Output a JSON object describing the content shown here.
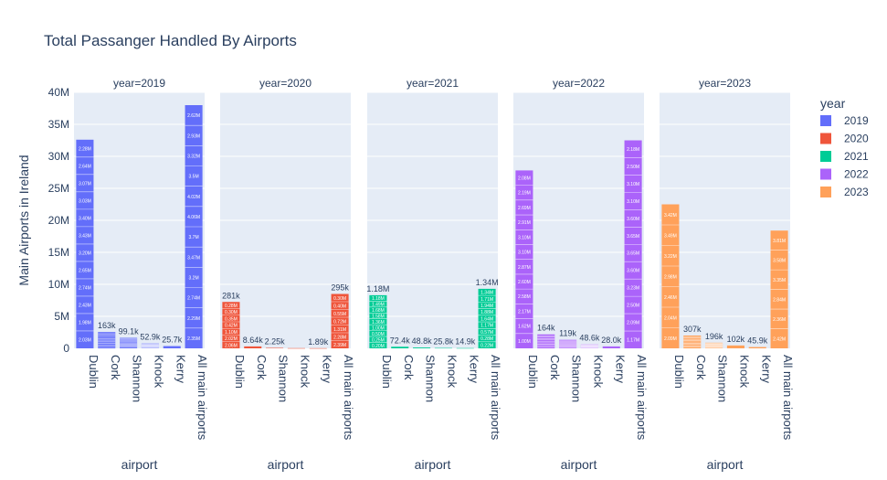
{
  "chart_data": {
    "type": "bar",
    "title": "Total Passanger Handled By Airports",
    "xlabel": "airport",
    "ylabel": "Main Airports in Ireland",
    "legend_title": "year",
    "legend_position": "right",
    "grid": true,
    "ylim": [
      0,
      40000000
    ],
    "yticks": [
      0,
      5000000,
      10000000,
      15000000,
      20000000,
      25000000,
      30000000,
      35000000,
      40000000
    ],
    "ytick_labels": [
      "0",
      "5M",
      "10M",
      "15M",
      "20M",
      "25M",
      "30M",
      "35M",
      "40M"
    ],
    "categories": [
      "Dublin",
      "Cork",
      "Shannon",
      "Knock",
      "Kerry",
      "All main airports"
    ],
    "facets": [
      {
        "label": "year=2019",
        "name": "2019",
        "color": "#636efa",
        "totals": [
          32600000,
          2550000,
          1640000,
          780000,
          350000,
          38000000
        ],
        "top_labels": [
          "",
          "163k",
          "99.1k",
          "52.9k",
          "25.7k",
          ""
        ],
        "segments": {
          "Dublin": [
            "2.03M",
            "1.98M",
            "2.43M",
            "2.74M",
            "2.65M",
            "3.20M",
            "3.43M",
            "3.40M",
            "3.03M",
            "3.07M",
            "2.64M",
            "2.28M"
          ],
          "All main airports": [
            "2.35M",
            "2.29M",
            "2.74M",
            "3.2M",
            "3.47M",
            "3.7M",
            "4.06M",
            "4.02M",
            "3.5M",
            "3.32M",
            "2.93M",
            "2.62M"
          ]
        }
      },
      {
        "label": "year=2020",
        "name": "2020",
        "color": "#ef553b",
        "totals": [
          7250000,
          300000,
          75000,
          30000,
          25000,
          8500000
        ],
        "top_labels": [
          "281k",
          "8.64k",
          "2.25k",
          "",
          "1.89k",
          "295k"
        ],
        "segments": {
          "Dublin": [
            "2.06M",
            "2.02M",
            "1.10M",
            "0.42M",
            "0.35M",
            "0.30M",
            "0.28M"
          ],
          "All main airports": [
            "2.39M",
            "2.28M",
            "1.31M",
            "0.72M",
            "0.55M",
            "0.40M",
            "0.30M"
          ]
        }
      },
      {
        "label": "year=2021",
        "name": "2021",
        "color": "#00cc96",
        "totals": [
          8300000,
          250000,
          130000,
          60000,
          40000,
          9300000
        ],
        "top_labels": [
          "1.18M",
          "72.4k",
          "48.8k",
          "25.8k",
          "14.9k",
          "1.34M"
        ],
        "segments": {
          "Dublin": [
            "0.20M",
            "0.25M",
            "0.50M",
            "1.00M",
            "1.36M",
            "1.58M",
            "1.68M",
            "1.49M",
            "1.18M"
          ],
          "All main airports": [
            "0.22M",
            "0.28M",
            "0.57M",
            "1.17M",
            "1.64M",
            "1.88M",
            "1.94M",
            "1.71M",
            "1.34M"
          ]
        }
      },
      {
        "label": "year=2022",
        "name": "2022",
        "color": "#ab63fa",
        "totals": [
          27800000,
          2180000,
          1330000,
          620000,
          300000,
          32500000
        ],
        "top_labels": [
          "",
          "164k",
          "119k",
          "48.6k",
          "28.0k",
          ""
        ],
        "segments": {
          "Dublin": [
            "1.00M",
            "1.62M",
            "2.17M",
            "2.58M",
            "2.60M",
            "2.87M",
            "3.10M",
            "3.10M",
            "2.91M",
            "2.69M",
            "2.19M",
            "2.08M"
          ],
          "All main airports": [
            "1.17M",
            "2.09M",
            "2.50M",
            "3.23M",
            "3.60M",
            "3.65M",
            "3.65M",
            "3.60M",
            "3.10M",
            "3.10M",
            "2.50M",
            "2.18M"
          ]
        }
      },
      {
        "label": "year=2023",
        "name": "2023",
        "color": "#ffa15a",
        "totals": [
          22500000,
          2000000,
          880000,
          450000,
          200000,
          18400000
        ],
        "top_labels": [
          "",
          "307k",
          "196k",
          "102k",
          "45.9k",
          ""
        ],
        "segments": {
          "Dublin": [
            "2.09M",
            "2.04M",
            "2.46M",
            "2.98M",
            "3.22M",
            "3.49M",
            "3.42M"
          ],
          "All main airports": [
            "2.42M",
            "2.36M",
            "2.84M",
            "3.35M",
            "3.58M",
            "3.81M"
          ]
        }
      }
    ]
  }
}
